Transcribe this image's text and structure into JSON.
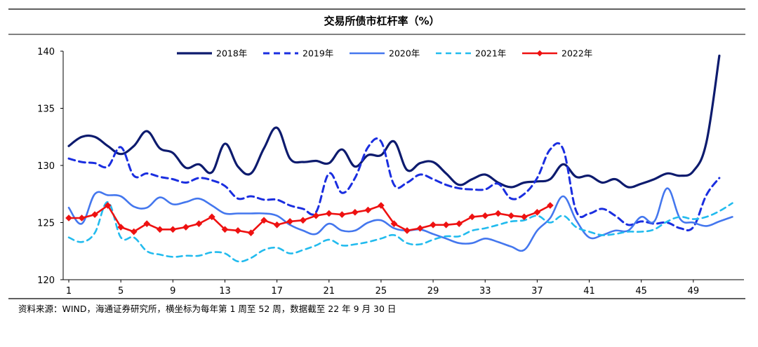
{
  "chart_data": {
    "type": "line",
    "title": "交易所债市杠杆率（%）",
    "xlabel": "",
    "ylabel": "",
    "xlim": [
      1,
      52
    ],
    "ylim": [
      120,
      140
    ],
    "x_ticks": [
      1,
      5,
      9,
      13,
      17,
      21,
      25,
      29,
      33,
      37,
      41,
      45,
      49
    ],
    "y_ticks": [
      120,
      125,
      130,
      135,
      140
    ],
    "legend_position": "top",
    "series": [
      {
        "name": "2018年",
        "color": "#0d1b6e",
        "style": "solid-thick",
        "x": [
          1,
          2,
          3,
          4,
          5,
          6,
          7,
          8,
          9,
          10,
          11,
          12,
          13,
          14,
          15,
          16,
          17,
          18,
          19,
          20,
          21,
          22,
          23,
          24,
          25,
          26,
          27,
          28,
          29,
          30,
          31,
          32,
          33,
          34,
          35,
          36,
          37,
          38,
          39,
          40,
          41,
          42,
          43,
          44,
          45,
          46,
          47,
          48,
          49,
          50,
          51
        ],
        "values": [
          131.7,
          132.5,
          132.5,
          131.7,
          131.0,
          131.7,
          133.0,
          131.5,
          131.1,
          129.8,
          130.1,
          129.4,
          131.9,
          129.9,
          129.3,
          131.5,
          133.3,
          130.6,
          130.3,
          130.4,
          130.2,
          131.4,
          129.9,
          130.9,
          130.9,
          132.1,
          129.6,
          130.2,
          130.3,
          129.3,
          128.3,
          128.8,
          129.2,
          128.5,
          128.1,
          128.5,
          128.6,
          128.8,
          130.1,
          129.0,
          129.1,
          128.5,
          128.8,
          128.1,
          128.4,
          128.8,
          129.3,
          129.1,
          129.5,
          132.0,
          139.6
        ]
      },
      {
        "name": "2019年",
        "color": "#1a2ee0",
        "style": "dashed-thick",
        "x": [
          1,
          2,
          3,
          4,
          5,
          6,
          7,
          8,
          9,
          10,
          11,
          12,
          13,
          14,
          15,
          16,
          17,
          18,
          19,
          20,
          21,
          22,
          23,
          24,
          25,
          26,
          27,
          28,
          29,
          30,
          31,
          32,
          33,
          34,
          35,
          36,
          37,
          38,
          39,
          40,
          41,
          42,
          43,
          44,
          45,
          46,
          47,
          48,
          49,
          50,
          51
        ],
        "values": [
          130.6,
          130.3,
          130.2,
          129.9,
          131.6,
          129.1,
          129.3,
          129.0,
          128.8,
          128.5,
          128.9,
          128.7,
          128.2,
          127.1,
          127.3,
          127.0,
          127.0,
          126.5,
          126.2,
          125.9,
          129.3,
          127.6,
          128.9,
          131.6,
          132.1,
          128.3,
          128.5,
          129.2,
          128.8,
          128.3,
          128.0,
          127.9,
          127.9,
          128.4,
          127.1,
          127.5,
          128.9,
          131.4,
          131.4,
          126.0,
          125.8,
          126.2,
          125.6,
          124.8,
          125.1,
          124.9,
          125.0,
          124.5,
          124.6,
          127.4,
          128.9
        ]
      },
      {
        "name": "2020年",
        "color": "#4477ee",
        "style": "solid-medium",
        "x": [
          1,
          2,
          3,
          4,
          5,
          6,
          7,
          8,
          9,
          10,
          11,
          12,
          13,
          14,
          15,
          16,
          17,
          18,
          19,
          20,
          21,
          22,
          23,
          24,
          25,
          26,
          27,
          28,
          29,
          30,
          31,
          32,
          33,
          34,
          35,
          36,
          37,
          38,
          39,
          40,
          41,
          42,
          43,
          44,
          45,
          46,
          47,
          48,
          49,
          50,
          51,
          52
        ],
        "values": [
          126.3,
          124.9,
          127.5,
          127.4,
          127.3,
          126.4,
          126.3,
          127.2,
          126.6,
          126.8,
          127.1,
          126.5,
          125.8,
          125.8,
          125.8,
          125.8,
          125.6,
          124.8,
          124.3,
          124.0,
          124.9,
          124.3,
          124.3,
          125.0,
          125.2,
          124.5,
          124.3,
          124.4,
          124.0,
          123.6,
          123.2,
          123.2,
          123.6,
          123.3,
          122.9,
          122.6,
          124.3,
          125.4,
          127.3,
          125.2,
          123.7,
          123.9,
          124.3,
          124.3,
          125.5,
          125.1,
          128.0,
          125.3,
          125.0,
          124.7,
          125.1,
          125.5
        ]
      },
      {
        "name": "2021年",
        "color": "#22bbee",
        "style": "dashed-medium",
        "x": [
          1,
          2,
          3,
          4,
          5,
          6,
          7,
          8,
          9,
          10,
          11,
          12,
          13,
          14,
          15,
          16,
          17,
          18,
          19,
          20,
          21,
          22,
          23,
          24,
          25,
          26,
          27,
          28,
          29,
          30,
          31,
          32,
          33,
          34,
          35,
          36,
          37,
          38,
          39,
          40,
          41,
          42,
          43,
          44,
          45,
          46,
          47,
          48,
          49,
          50,
          51,
          52
        ],
        "values": [
          123.7,
          123.3,
          124.1,
          126.8,
          123.7,
          123.7,
          122.5,
          122.2,
          122.0,
          122.1,
          122.1,
          122.4,
          122.3,
          121.6,
          121.9,
          122.6,
          122.8,
          122.3,
          122.6,
          123.0,
          123.5,
          123.0,
          123.1,
          123.3,
          123.6,
          123.9,
          123.2,
          123.1,
          123.5,
          123.8,
          123.8,
          124.3,
          124.5,
          124.8,
          125.1,
          125.2,
          125.6,
          125.0,
          125.6,
          124.6,
          124.2,
          123.9,
          124.0,
          124.2,
          124.2,
          124.4,
          125.1,
          125.5,
          125.3,
          125.5,
          126.0,
          126.7
        ]
      },
      {
        "name": "2022年",
        "color": "#ee1111",
        "style": "solid-diamond",
        "x": [
          1,
          2,
          3,
          4,
          5,
          6,
          7,
          8,
          9,
          10,
          11,
          12,
          13,
          14,
          15,
          16,
          17,
          18,
          19,
          20,
          21,
          22,
          23,
          24,
          25,
          26,
          27,
          28,
          29,
          30,
          31,
          32,
          33,
          34,
          35,
          36,
          37,
          38
        ],
        "values": [
          125.4,
          125.4,
          125.7,
          126.5,
          124.6,
          124.2,
          124.9,
          124.4,
          124.4,
          124.6,
          124.9,
          125.5,
          124.4,
          124.3,
          124.1,
          125.2,
          124.8,
          125.1,
          125.2,
          125.6,
          125.8,
          125.7,
          125.9,
          126.1,
          126.5,
          124.9,
          124.3,
          124.5,
          124.8,
          124.8,
          124.9,
          125.5,
          125.6,
          125.8,
          125.6,
          125.5,
          125.9,
          126.5
        ]
      }
    ]
  },
  "source_note": "资料来源：WIND，海通证券研究所，横坐标为每年第 1 周至 52 周，数据截至 22 年 9 月 30 日"
}
